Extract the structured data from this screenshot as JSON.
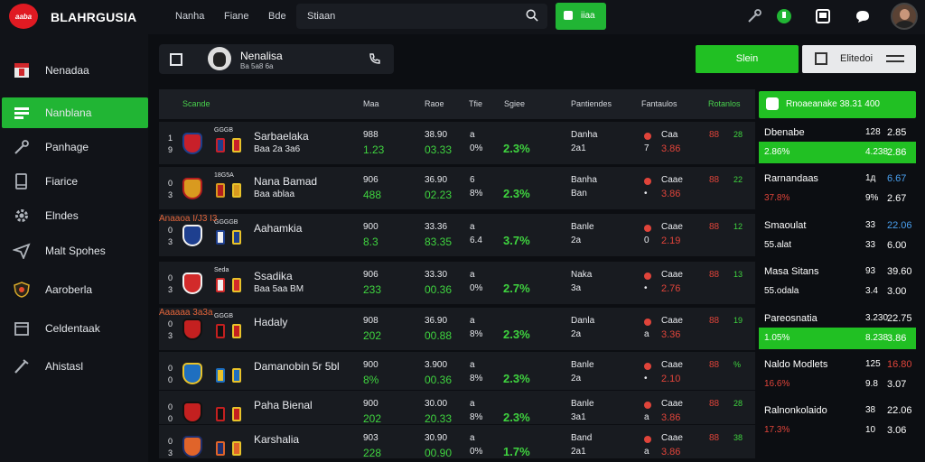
{
  "header": {
    "logo_text": "aaba",
    "brand": "BLAHRGUSIA",
    "nav": [
      "Nanha",
      "Fiane",
      "Bde"
    ],
    "search_text": "Stiaan",
    "live_label": "iiaa",
    "colors": {
      "accent": "#21b534",
      "brand_red": "#e01a22",
      "bg": "#0c0e12"
    }
  },
  "sidebar": {
    "items": [
      {
        "label": "Nenadaa",
        "icon": "flag-icon"
      },
      {
        "label": "Nanblana",
        "icon": "grid-icon",
        "active": true
      },
      {
        "label": "Panhage",
        "icon": "wrench-icon"
      },
      {
        "label": "Fiarice",
        "icon": "phone-icon"
      },
      {
        "label": "Elndes",
        "icon": "gear-icon"
      },
      {
        "label": "Malt Spohes",
        "icon": "send-icon"
      },
      {
        "label": "Aaroberla",
        "icon": "shield-icon"
      },
      {
        "label": "Celdentaak",
        "icon": "calendar-icon"
      },
      {
        "label": "Ahistasl",
        "icon": "pen-icon"
      }
    ]
  },
  "profile": {
    "name": "Nenalisa",
    "sub": "Ba 5a8 6a"
  },
  "buttons": {
    "green": "Slein",
    "white": "Elitedoi"
  },
  "table": {
    "headers": [
      "Scande",
      "Maa",
      "Raoe",
      "Tfie",
      "Sgiee",
      "Pantiendes",
      "Fantaulos",
      "Rotanlos"
    ],
    "rows": [
      {
        "rank": [
          "1",
          "9"
        ],
        "mini": "GGGB",
        "name": "Sarbaelaka",
        "sub": "Baa 2a 3a6",
        "sub_color": "green",
        "m1": "988",
        "m2": "1.23",
        "r1": "38.90",
        "r2": "03.33",
        "t1": "a",
        "t2": "0%",
        "pct": "2.3%",
        "p1": "Danha",
        "p2": "2a1",
        "f1": "Caa",
        "f2": "7",
        "f3": "3.86",
        "o1": "88",
        "o2": "28"
      },
      {
        "rank": [
          "0",
          "3"
        ],
        "mini": "18G5A",
        "name": "Nana Bamad",
        "sub": "Baa ablaa",
        "sub_color": "green",
        "m1": "906",
        "m2": "488",
        "r1": "36.90",
        "r2": "02.23",
        "t1": "6",
        "t2": "8%",
        "pct": "2.3%",
        "p1": "Banha",
        "p2": "Ban",
        "f1": "Caae",
        "f2": "•",
        "f3": "3.86",
        "o1": "88",
        "o2": "22"
      },
      {
        "rank": [
          "0",
          "3"
        ],
        "mini": "GGGGB",
        "name": "Aahamkia",
        "sub": "Anaaoa I/J3 I3",
        "sub_color": "orange",
        "m1": "900",
        "m2": "8.3",
        "r1": "33.36",
        "r2": "83.35",
        "t1": "a",
        "t2": "6.4",
        "pct": "3.7%",
        "p1": "Banle",
        "p2": "2a",
        "f1": "Caae",
        "f2": "0",
        "f3": "2.19",
        "o1": "88",
        "o2": "12"
      },
      {
        "rank": [
          "0",
          "3"
        ],
        "mini": "Seda",
        "name": "Ssadika",
        "sub": "Baa 5aa BM",
        "sub_color": "green",
        "m1": "906",
        "m2": "233",
        "r1": "33.30",
        "r2": "00.36",
        "t1": "a",
        "t2": "0%",
        "pct": "2.7%",
        "p1": "Naka",
        "p2": "3a",
        "f1": "Caae",
        "f2": "•",
        "f3": "2.76",
        "o1": "88",
        "o2": "13"
      },
      {
        "rank": [
          "0",
          "3"
        ],
        "mini": "GGGB",
        "name": "Hadaly",
        "sub": "Aaaaaa 3a3a",
        "sub_color": "orange",
        "m1": "908",
        "m2": "202",
        "r1": "36.90",
        "r2": "00.88",
        "t1": "a",
        "t2": "8%",
        "pct": "2.3%",
        "p1": "Danla",
        "p2": "2a",
        "f1": "Caae",
        "f2": "a",
        "f3": "3.36",
        "o1": "88",
        "o2": "19"
      },
      {
        "rank": [
          "0",
          "0"
        ],
        "mini": "",
        "name": "Damanobin 5r 5bl",
        "sub": "",
        "sub_color": "green",
        "m1": "900",
        "m2": "8%",
        "r1": "3.900",
        "r2": "00.36",
        "t1": "a",
        "t2": "8%",
        "pct": "2.3%",
        "p1": "Banle",
        "p2": "2a",
        "f1": "Caae",
        "f2": "•",
        "f3": "2.10",
        "o1": "88",
        "o2": "%"
      },
      {
        "rank": [
          "0",
          "0"
        ],
        "mini": "",
        "name": "Paha Bienal",
        "sub": "",
        "sub_color": "green",
        "m1": "900",
        "m2": "202",
        "r1": "30.00",
        "r2": "20.33",
        "t1": "a",
        "t2": "8%",
        "pct": "2.3%",
        "p1": "Banle",
        "p2": "3a1",
        "f1": "Caae",
        "f2": "a",
        "f3": "3.86",
        "o1": "88",
        "o2": "28"
      },
      {
        "rank": [
          "0",
          "3"
        ],
        "mini": "",
        "name": "Karshalia",
        "sub": "",
        "sub_color": "green",
        "m1": "903",
        "m2": "228",
        "r1": "30.90",
        "r2": "00.90",
        "t1": "a",
        "t2": "0%",
        "pct": "1.7%",
        "p1": "Band",
        "p2": "2a1",
        "f1": "Caae",
        "f2": "a",
        "f3": "3.86",
        "o1": "88",
        "o2": "38"
      }
    ]
  },
  "right_panel": {
    "title": "Rnoaeanake 38.31 400",
    "entries": [
      {
        "name": "Dbenabe",
        "v1": "128",
        "v2": "2.85",
        "v2_color": "white",
        "pct": "2.86%",
        "pv1": "4.238",
        "pv2": "2.86",
        "pct_color": "white",
        "pct_hl": true
      },
      {
        "name": "Rarnandaas",
        "v1": "1д",
        "v2": "6.67",
        "v2_color": "blue",
        "pct": "37.8%",
        "pv1": "9%",
        "pv2": "2.67",
        "pct_color": "red",
        "pct_hl": false
      },
      {
        "name": "Smaoulat",
        "v1": "33",
        "v2": "22.06",
        "v2_color": "blue",
        "pct": "55.alat",
        "pv1": "33",
        "pv2": "6.00",
        "pct_color": "white",
        "pct_hl": false
      },
      {
        "name": "Masa Sitans",
        "v1": "93",
        "v2": "39.60",
        "v2_color": "white",
        "pct": "55.odala",
        "pv1": "3.4",
        "pv2": "3.00",
        "pct_color": "white",
        "pct_hl": false
      },
      {
        "name": "Pareosnatia",
        "v1": "3.230",
        "v2": "22.75",
        "v2_color": "white",
        "pct": "1.05%",
        "pv1": "8.238",
        "pv2": "3.86",
        "pct_color": "white",
        "pct_hl": true
      },
      {
        "name": "Naldo Modlets",
        "v1": "125",
        "v2": "16.80",
        "v2_color": "red",
        "pct": "16.6%",
        "pv1": "9.8",
        "pv2": "3.07",
        "pct_color": "red",
        "pct_hl": false
      },
      {
        "name": "Ralnonkolaido",
        "v1": "38",
        "v2": "22.06",
        "v2_color": "white",
        "pct": "17.3%",
        "pv1": "10",
        "pv2": "3.06",
        "pct_color": "red",
        "pct_hl": false
      }
    ]
  }
}
